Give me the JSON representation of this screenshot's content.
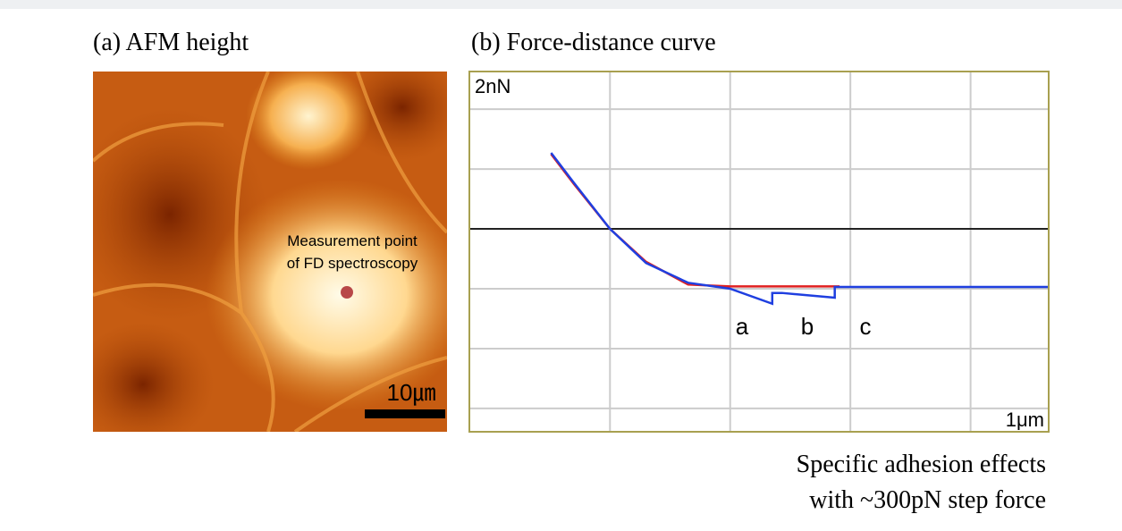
{
  "panel_a": {
    "title": "(a) AFM height",
    "annotation": [
      "Measurement point",
      "of FD spectroscopy"
    ],
    "scale_bar": "10㎛"
  },
  "chart_data": {
    "type": "line",
    "title": "(b) Force-distance curve",
    "y_label": "2nN",
    "x_label": "1μm",
    "annotations": [
      "a",
      "b",
      "c"
    ],
    "xlim": [
      -0.17,
      4.65
    ],
    "ylim": [
      -3.39,
      2.63
    ],
    "xticks": [
      1,
      2,
      3,
      4
    ],
    "yticks": [
      -3,
      -2,
      -1,
      0,
      1,
      2
    ],
    "grid": true,
    "series": [
      {
        "color": "#e02020",
        "x": [
          0.51,
          0.7,
          1,
          1.3,
          1.65,
          2,
          2.5,
          2.91
        ],
        "values": [
          1.25,
          0.75,
          0,
          -0.55,
          -0.93,
          -0.96,
          -0.96,
          -0.96
        ]
      },
      {
        "color": "#1f3fe0",
        "x": [
          0.51,
          0.7,
          1,
          1.3,
          1.65,
          2,
          2.35,
          2.35,
          2.43,
          2.87,
          2.87,
          2.91,
          4.65
        ],
        "values": [
          1.27,
          0.77,
          0,
          -0.57,
          -0.9,
          -1.0,
          -1.25,
          -1.07,
          -1.07,
          -1.15,
          -0.97,
          -0.97,
          -0.97
        ]
      }
    ]
  },
  "caption": [
    "Specific adhesion effects",
    "with ~300pN step force"
  ]
}
